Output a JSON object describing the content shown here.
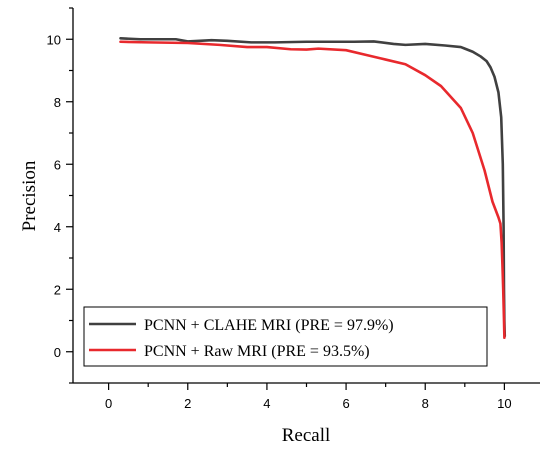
{
  "chart_data": {
    "type": "line",
    "xlabel": "Recall",
    "ylabel": "Precision",
    "xlim": [
      -0.9,
      10.9
    ],
    "ylim": [
      -1.0,
      11.0
    ],
    "xticks": [
      0,
      2,
      4,
      6,
      8,
      10
    ],
    "yticks": [
      0,
      2,
      4,
      6,
      8,
      10
    ],
    "grid": false,
    "legend_position": "bottom-left",
    "series": [
      {
        "name": "PCNN + CLAHE MRI (PRE = 97.9%)",
        "color": "#404040",
        "x": [
          0.3,
          0.8,
          1.2,
          1.7,
          2.0,
          2.6,
          3.0,
          3.6,
          4.2,
          5.0,
          5.8,
          6.2,
          6.7,
          7.2,
          7.5,
          8.0,
          8.5,
          8.9,
          9.0,
          9.2,
          9.4,
          9.55,
          9.65,
          9.75,
          9.85,
          9.92,
          9.96,
          9.98,
          9.99,
          10.0,
          10.01
        ],
        "y": [
          10.03,
          10.0,
          10.0,
          10.0,
          9.93,
          9.97,
          9.95,
          9.9,
          9.9,
          9.92,
          9.92,
          9.92,
          9.93,
          9.85,
          9.82,
          9.85,
          9.8,
          9.75,
          9.7,
          9.6,
          9.45,
          9.3,
          9.1,
          8.8,
          8.3,
          7.5,
          6.0,
          4.0,
          2.0,
          1.0,
          0.5
        ]
      },
      {
        "name": "PCNN + Raw MRI (PRE = 93.5%)",
        "color": "#e8292d",
        "x": [
          0.3,
          1.0,
          2.0,
          2.8,
          3.5,
          4.0,
          4.6,
          5.0,
          5.3,
          6.0,
          6.5,
          7.0,
          7.5,
          8.0,
          8.4,
          8.9,
          9.2,
          9.5,
          9.7,
          9.85,
          9.9,
          9.93,
          9.95,
          9.97,
          9.99,
          10.0
        ],
        "y": [
          9.92,
          9.9,
          9.88,
          9.82,
          9.75,
          9.75,
          9.68,
          9.67,
          9.7,
          9.65,
          9.5,
          9.35,
          9.2,
          8.85,
          8.5,
          7.8,
          7.0,
          5.8,
          4.8,
          4.3,
          4.1,
          3.5,
          2.8,
          2.0,
          1.0,
          0.45
        ]
      }
    ]
  }
}
